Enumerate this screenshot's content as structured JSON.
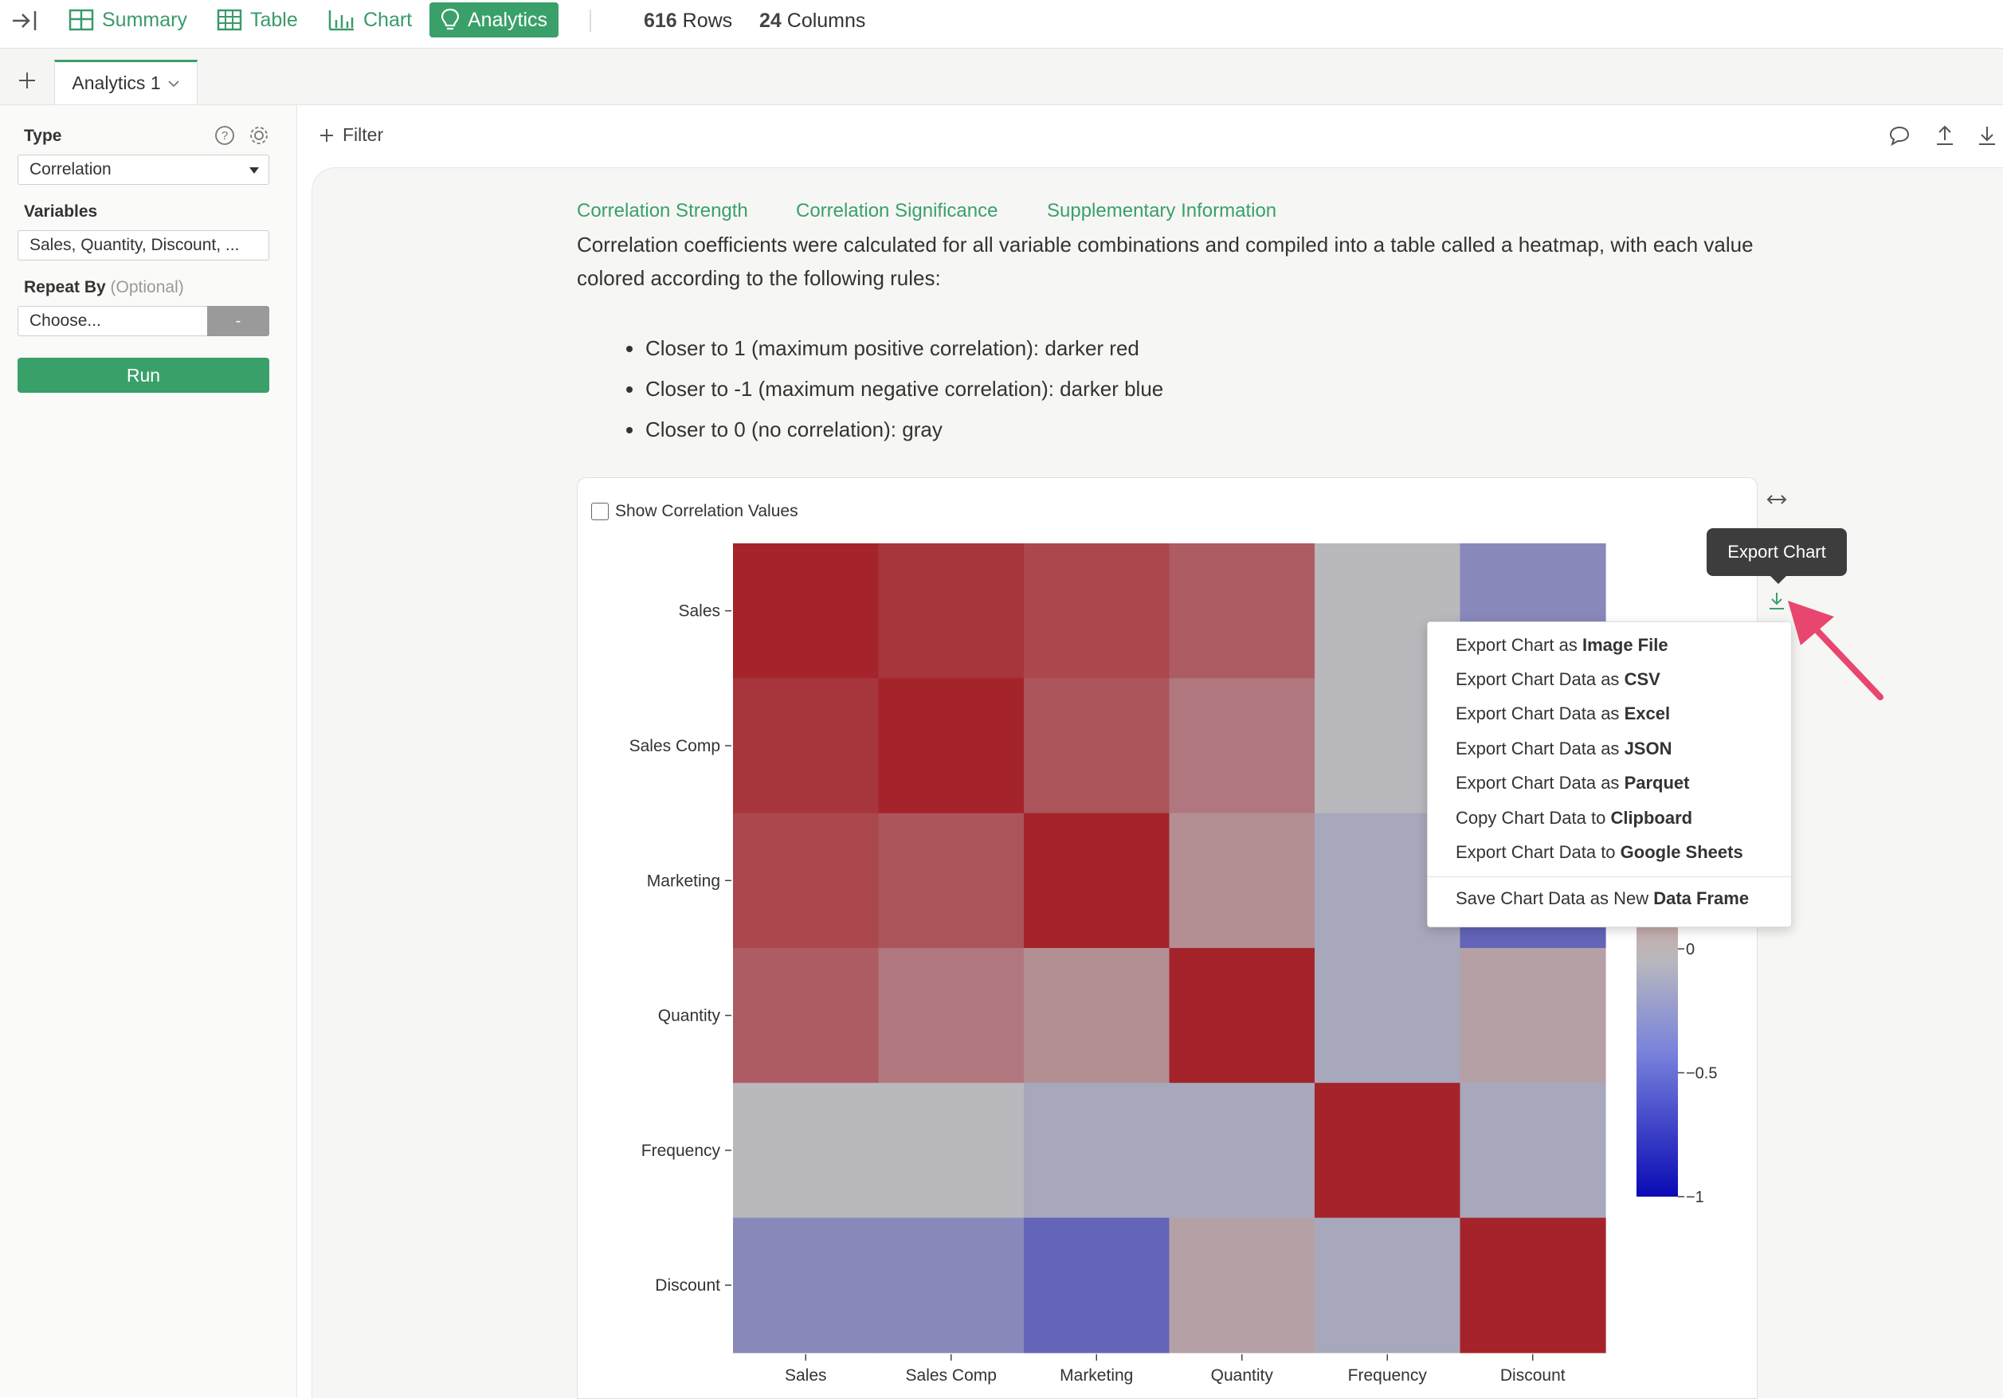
{
  "toolbar": {
    "nav": [
      "Summary",
      "Table",
      "Chart",
      "Analytics"
    ],
    "rows_count": "616",
    "rows_label": "Rows",
    "cols_count": "24",
    "cols_label": "Columns"
  },
  "tabs": {
    "active_tab": "Analytics 1"
  },
  "sidebar": {
    "type_label": "Type",
    "type_value": "Correlation",
    "variables_label": "Variables",
    "variables_value": "Sales, Quantity, Discount, ...",
    "repeat_label": "Repeat By",
    "repeat_optional": "(Optional)",
    "repeat_placeholder": "Choose...",
    "repeat_dash": "-",
    "run_label": "Run"
  },
  "filter_label": "Filter",
  "content": {
    "links": [
      "Correlation Strength",
      "Correlation Significance",
      "Supplementary Information"
    ],
    "intro": "Correlation coefficients were calculated for all variable combinations and compiled into a table called a heatmap, with each value colored according to the following rules:",
    "rules": [
      "Closer to 1 (maximum positive correlation): darker red",
      "Closer to -1 (maximum negative correlation): darker blue",
      "Closer to 0 (no correlation): gray"
    ],
    "show_values_label": "Show Correlation Values"
  },
  "tooltip": "Export Chart",
  "export_menu": [
    {
      "prefix": "Export Chart as",
      "bold": "Image File"
    },
    {
      "prefix": "Export Chart Data as",
      "bold": "CSV"
    },
    {
      "prefix": "Export Chart Data as",
      "bold": "Excel"
    },
    {
      "prefix": "Export Chart Data as",
      "bold": "JSON"
    },
    {
      "prefix": "Export Chart Data as",
      "bold": "Parquet"
    },
    {
      "prefix": "Copy Chart Data to",
      "bold": "Clipboard"
    },
    {
      "prefix": "Export Chart Data to",
      "bold": "Google Sheets"
    },
    {
      "prefix": "Save Chart Data as New",
      "bold": "Data Frame"
    }
  ],
  "colors": {
    "accent": "#3aa06a",
    "positive": "#a5232a",
    "neutral": "#b8b8bd",
    "negative": "#0a0ab4",
    "arrow": "#e8466e"
  },
  "chart_data": {
    "type": "heatmap",
    "x_categories": [
      "Sales",
      "Sales Comp",
      "Marketing",
      "Quantity",
      "Frequency",
      "Discount"
    ],
    "y_categories": [
      "Sales",
      "Sales Comp",
      "Marketing",
      "Quantity",
      "Frequency",
      "Discount"
    ],
    "values": [
      [
        1.0,
        0.85,
        0.7,
        0.55,
        0.0,
        -0.2
      ],
      [
        0.85,
        1.0,
        0.6,
        0.35,
        0.0,
        -0.2
      ],
      [
        0.7,
        0.6,
        1.0,
        0.2,
        -0.05,
        -0.4
      ],
      [
        0.55,
        0.35,
        0.2,
        1.0,
        -0.05,
        0.1
      ],
      [
        0.0,
        0.0,
        -0.05,
        -0.05,
        1.0,
        -0.05
      ],
      [
        -0.2,
        -0.2,
        -0.4,
        0.1,
        -0.05,
        1.0
      ]
    ],
    "colorbar_ticks_visible": [
      "0",
      "−0.5",
      "−1"
    ],
    "zlim": [
      -1,
      1
    ]
  }
}
